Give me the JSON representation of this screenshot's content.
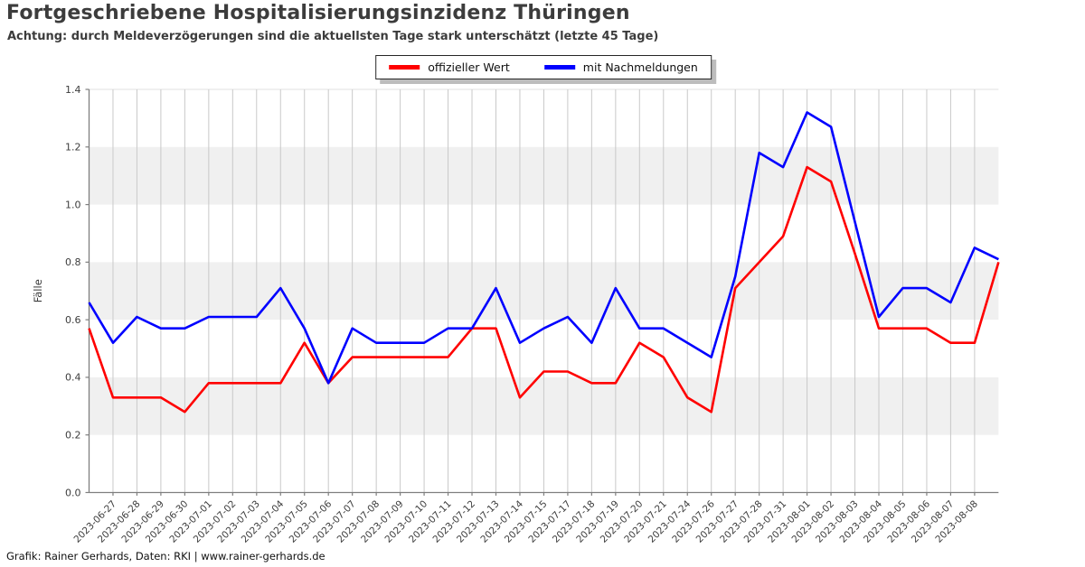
{
  "header": {
    "title": "Fortgeschriebene Hospitalisierungsinzidenz Thüringen",
    "subtitle": "Achtung: durch Meldeverzögerungen sind die aktuellsten Tage stark unterschätzt (letzte 45 Tage)"
  },
  "legend": {
    "position": "top center",
    "items": [
      {
        "label": "offizieller Wert",
        "color": "#ff0000"
      },
      {
        "label": "mit Nachmeldungen",
        "color": "#0000ff"
      }
    ]
  },
  "footer": {
    "credit": "Grafik: Rainer Gerhards, Daten: RKI | www.rainer-gerhards.de"
  },
  "chart_data": {
    "type": "line",
    "title": "Fortgeschriebene Hospitalisierungsinzidenz Thüringen",
    "xlabel": "",
    "ylabel": "Fälle",
    "ylim": [
      0.0,
      1.4
    ],
    "yticks": [
      0.0,
      0.2,
      0.4,
      0.6,
      0.8,
      1.0,
      1.2,
      1.4
    ],
    "grid": "vertical gridline at each labeled date; alternating horizontal shaded bands",
    "shaded_bands": [
      [
        0.2,
        0.4
      ],
      [
        0.6,
        0.8
      ],
      [
        1.0,
        1.2
      ]
    ],
    "legend_position": "top center",
    "categories": [
      "",
      "2023-06-27",
      "2023-06-28",
      "2023-06-29",
      "2023-06-30",
      "2023-07-01",
      "2023-07-02",
      "2023-07-03",
      "2023-07-04",
      "2023-07-05",
      "2023-07-06",
      "2023-07-07",
      "2023-07-08",
      "2023-07-09",
      "2023-07-10",
      "2023-07-11",
      "2023-07-12",
      "2023-07-13",
      "2023-07-14",
      "2023-07-15",
      "2023-07-17",
      "2023-07-18",
      "2023-07-19",
      "2023-07-20",
      "2023-07-21",
      "2023-07-24",
      "2023-07-26",
      "2023-07-27",
      "2023-07-28",
      "2023-07-31",
      "2023-08-01",
      "2023-08-02",
      "2023-08-03",
      "2023-08-04",
      "2023-08-05",
      "2023-08-06",
      "2023-08-07",
      "2023-08-08",
      ""
    ],
    "series": [
      {
        "name": "offizieller Wert",
        "color": "#ff0000",
        "values": [
          0.57,
          0.33,
          0.33,
          0.33,
          0.28,
          0.38,
          0.38,
          0.38,
          0.38,
          0.52,
          0.38,
          0.47,
          0.47,
          0.47,
          0.47,
          0.47,
          0.57,
          0.57,
          0.33,
          0.42,
          0.42,
          0.38,
          0.38,
          0.52,
          0.47,
          0.33,
          0.28,
          0.71,
          0.8,
          0.89,
          1.13,
          1.08,
          0.83,
          0.57,
          0.57,
          0.57,
          0.52,
          0.52,
          0.8
        ]
      },
      {
        "name": "mit Nachmeldungen",
        "color": "#0000ff",
        "values": [
          0.66,
          0.52,
          0.61,
          0.57,
          0.57,
          0.61,
          0.61,
          0.61,
          0.71,
          0.57,
          0.38,
          0.57,
          0.52,
          0.52,
          0.52,
          0.57,
          0.57,
          0.71,
          0.52,
          0.57,
          0.61,
          0.52,
          0.71,
          0.57,
          0.57,
          0.52,
          0.47,
          0.75,
          1.18,
          1.13,
          1.32,
          1.27,
          0.94,
          0.61,
          0.71,
          0.71,
          0.66,
          0.85,
          0.81
        ]
      }
    ]
  },
  "styles": {
    "background": "#ffffff",
    "band_color": "#f0f0f0",
    "gridline_color": "#c9c9c9",
    "axis_color": "#7f7f7f",
    "tick_text_color": "#3c3c3c"
  }
}
